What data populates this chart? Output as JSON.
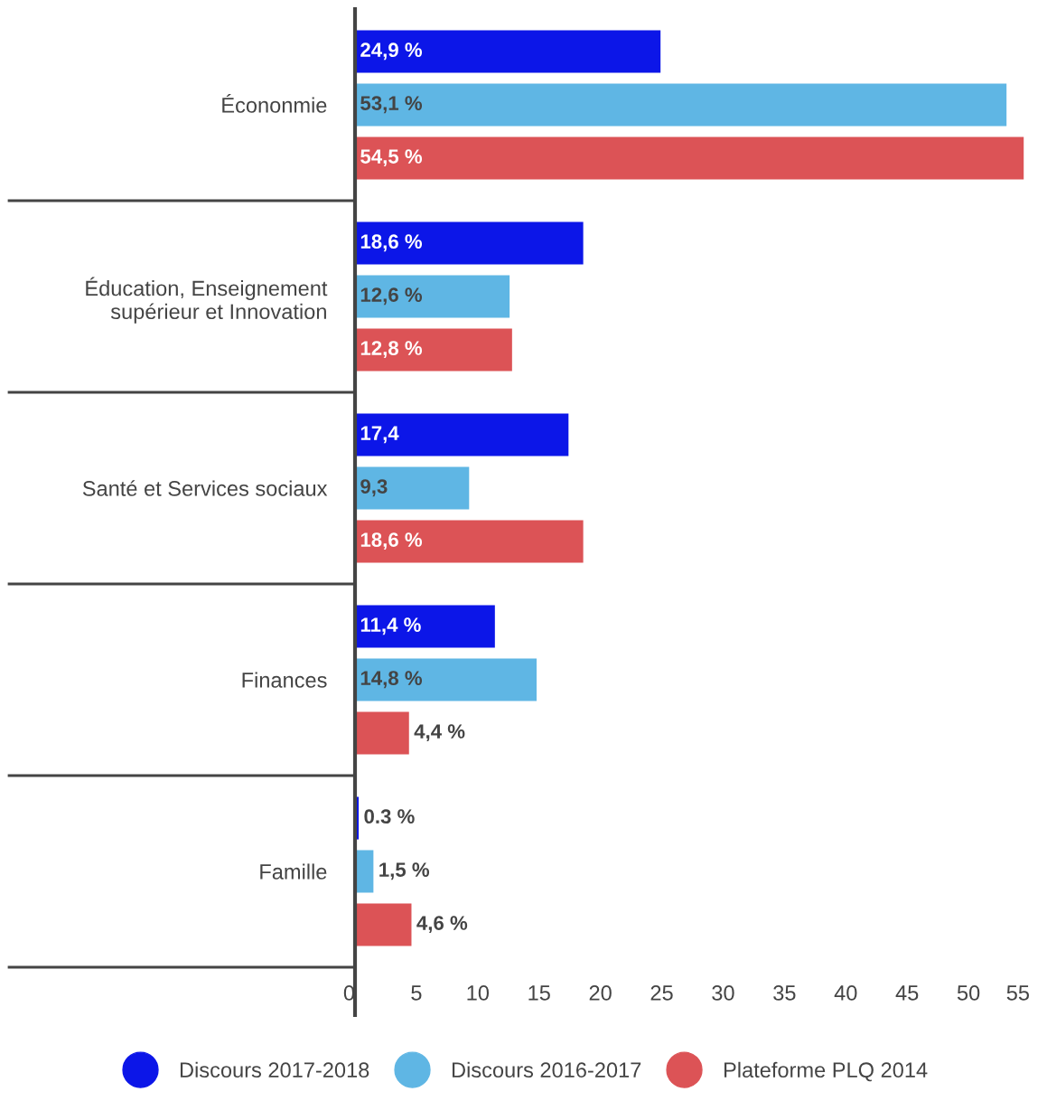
{
  "chart_data": {
    "type": "bar",
    "orientation": "horizontal",
    "categories": [
      "Écononmie",
      "Éducation, Enseignement\nsupérieur et Innovation",
      "Santé et Services sociaux",
      "Finances",
      "Famille"
    ],
    "series": [
      {
        "name": "Discours 2017-2018",
        "color": "#0c16e8",
        "values": [
          24.9,
          18.6,
          17.4,
          11.4,
          0.3
        ],
        "value_labels": [
          "24,9 %",
          "18,6 %",
          "17,4",
          "11,4 %",
          "0.3 %"
        ]
      },
      {
        "name": "Discours 2016-2017",
        "color": "#5fb6e4",
        "values": [
          53.1,
          12.6,
          9.3,
          14.8,
          1.5
        ],
        "value_labels": [
          "53,1 %",
          "12,6 %",
          "9,3",
          "14,8 %",
          "1,5 %"
        ]
      },
      {
        "name": "Plateforme PLQ 2014",
        "color": "#dc5356",
        "values": [
          54.5,
          12.8,
          18.6,
          4.4,
          4.6
        ],
        "value_labels": [
          "54,5 %",
          "12,8 %",
          "18,6 %",
          "4,4 %",
          "4,6 %"
        ]
      }
    ],
    "xlim": [
      0,
      55
    ],
    "xticks": [
      0,
      5,
      10,
      15,
      20,
      25,
      30,
      35,
      40,
      45,
      50,
      55
    ],
    "grid": false,
    "legend": "bottom"
  }
}
